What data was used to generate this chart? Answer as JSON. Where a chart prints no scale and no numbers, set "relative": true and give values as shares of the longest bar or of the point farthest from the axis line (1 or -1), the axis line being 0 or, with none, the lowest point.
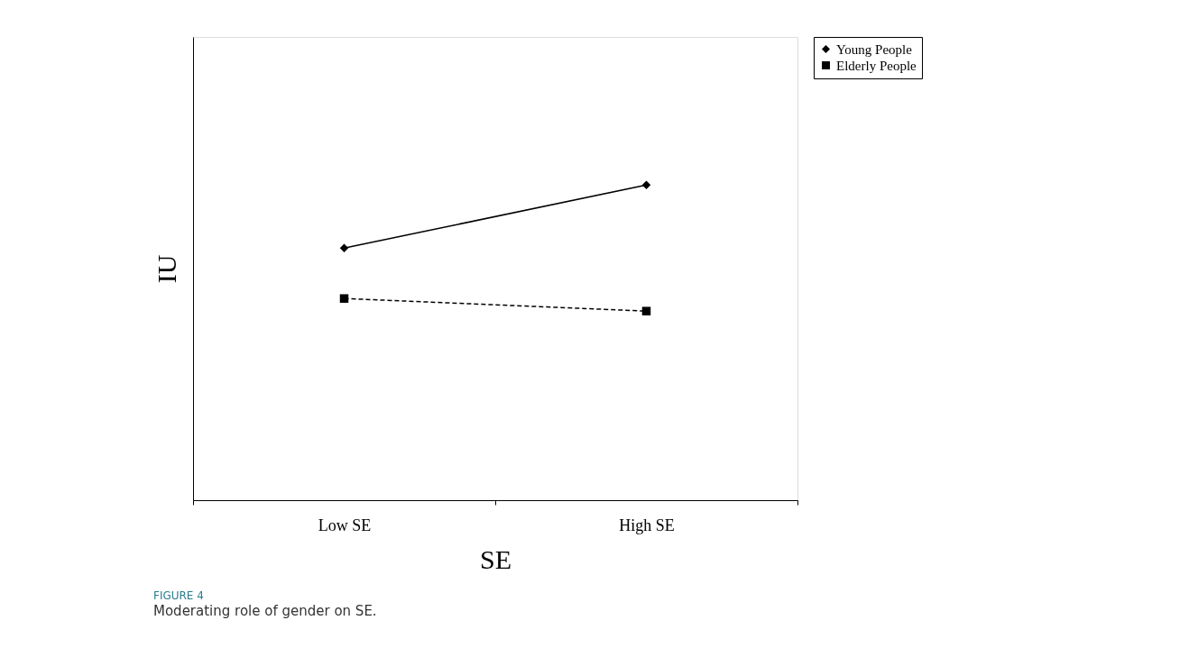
{
  "chart_data": {
    "type": "line",
    "relative": true,
    "xlabel": "SE",
    "ylabel": "IU",
    "categories": [
      "Low SE",
      "High SE"
    ],
    "series": [
      {
        "name": "Young People",
        "color": "#000000",
        "values": [
          0.8,
          1
        ],
        "marker": "diamond",
        "line_style": "solid"
      },
      {
        "name": "Elderly People",
        "color": "#000000",
        "values": [
          0.64,
          0.6
        ],
        "marker": "square",
        "line_style": "dashed"
      }
    ],
    "legend": "right",
    "grid": false,
    "annotations": [
      "FIGURE 4",
      "Moderating role of gender on SE."
    ]
  }
}
